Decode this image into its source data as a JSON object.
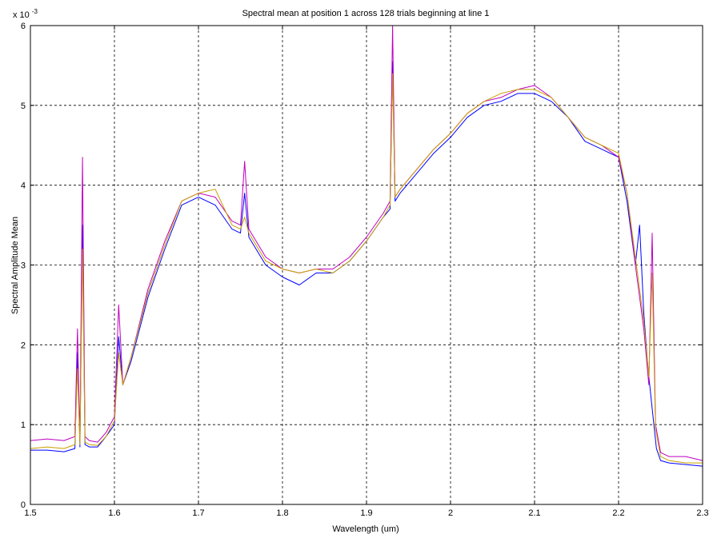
{
  "chart_data": {
    "type": "line",
    "title": "Spectral mean at position 1 across 128 trials beginning at line 1",
    "xlabel": "Wavelength (um)",
    "ylabel": "Spectral Amplitude Mean",
    "y_exponent_label": "x 10",
    "y_exponent_power": "-3",
    "xlim": [
      1.5,
      2.3
    ],
    "ylim": [
      0,
      6
    ],
    "x_ticks": [
      1.5,
      1.6,
      1.7,
      1.8,
      1.9,
      2.0,
      2.1,
      2.2,
      2.3
    ],
    "x_tick_labels": [
      "1.5",
      "1.6",
      "1.7",
      "1.8",
      "1.9",
      "2",
      "2.1",
      "2.2",
      "2.3"
    ],
    "y_ticks": [
      0,
      1,
      2,
      3,
      4,
      5,
      6
    ],
    "y_tick_labels": [
      "0",
      "1",
      "2",
      "3",
      "4",
      "5",
      "6"
    ],
    "grid": true,
    "legend": "none",
    "series": [
      {
        "color": "#0000ff",
        "x": [
          1.5,
          1.52,
          1.54,
          1.553,
          1.556,
          1.559,
          1.562,
          1.565,
          1.57,
          1.58,
          1.59,
          1.6,
          1.605,
          1.61,
          1.62,
          1.64,
          1.66,
          1.68,
          1.7,
          1.72,
          1.74,
          1.75,
          1.755,
          1.76,
          1.78,
          1.8,
          1.82,
          1.84,
          1.86,
          1.88,
          1.9,
          1.92,
          1.928,
          1.931,
          1.934,
          1.94,
          1.96,
          1.98,
          2.0,
          2.02,
          2.04,
          2.06,
          2.08,
          2.1,
          2.12,
          2.14,
          2.16,
          2.18,
          2.2,
          2.21,
          2.22,
          2.225,
          2.23,
          2.235,
          2.24,
          2.245,
          2.25,
          2.26,
          2.28,
          2.3
        ],
        "y": [
          0.68,
          0.68,
          0.66,
          0.7,
          1.9,
          0.72,
          3.5,
          0.75,
          0.72,
          0.72,
          0.85,
          1.0,
          2.1,
          1.5,
          1.8,
          2.6,
          3.2,
          3.75,
          3.85,
          3.75,
          3.45,
          3.4,
          3.9,
          3.35,
          3.0,
          2.85,
          2.75,
          2.9,
          2.9,
          3.05,
          3.3,
          3.6,
          3.7,
          5.55,
          3.8,
          3.9,
          4.15,
          4.4,
          4.6,
          4.85,
          5.0,
          5.05,
          5.15,
          5.15,
          5.05,
          4.85,
          4.55,
          4.45,
          4.35,
          3.8,
          3.0,
          3.5,
          2.4,
          1.7,
          1.2,
          0.7,
          0.55,
          0.52,
          0.5,
          0.48
        ]
      },
      {
        "color": "#c000c0",
        "x": [
          1.5,
          1.52,
          1.54,
          1.553,
          1.556,
          1.559,
          1.562,
          1.565,
          1.57,
          1.58,
          1.59,
          1.6,
          1.605,
          1.61,
          1.62,
          1.64,
          1.66,
          1.68,
          1.7,
          1.72,
          1.74,
          1.75,
          1.755,
          1.76,
          1.78,
          1.8,
          1.82,
          1.84,
          1.86,
          1.88,
          1.9,
          1.92,
          1.928,
          1.931,
          1.934,
          1.94,
          1.96,
          1.98,
          2.0,
          2.02,
          2.04,
          2.06,
          2.08,
          2.1,
          2.12,
          2.14,
          2.16,
          2.18,
          2.2,
          2.21,
          2.22,
          2.23,
          2.236,
          2.24,
          2.244,
          2.25,
          2.26,
          2.28,
          2.3
        ],
        "y": [
          0.8,
          0.82,
          0.8,
          0.85,
          2.2,
          0.8,
          4.35,
          0.85,
          0.8,
          0.78,
          0.9,
          1.1,
          2.5,
          1.5,
          1.85,
          2.7,
          3.3,
          3.8,
          3.9,
          3.85,
          3.55,
          3.5,
          4.3,
          3.45,
          3.1,
          2.95,
          2.9,
          2.95,
          2.95,
          3.1,
          3.35,
          3.65,
          3.8,
          6.0,
          3.85,
          3.95,
          4.2,
          4.45,
          4.65,
          4.9,
          5.05,
          5.1,
          5.2,
          5.25,
          5.1,
          4.85,
          4.6,
          4.5,
          4.35,
          3.9,
          3.0,
          2.2,
          1.5,
          3.4,
          1.0,
          0.65,
          0.6,
          0.6,
          0.55
        ]
      },
      {
        "color": "#c8a000",
        "x": [
          1.5,
          1.52,
          1.54,
          1.553,
          1.556,
          1.559,
          1.562,
          1.565,
          1.57,
          1.58,
          1.59,
          1.6,
          1.605,
          1.61,
          1.62,
          1.64,
          1.66,
          1.68,
          1.7,
          1.72,
          1.74,
          1.75,
          1.755,
          1.76,
          1.78,
          1.8,
          1.82,
          1.84,
          1.86,
          1.88,
          1.9,
          1.92,
          1.928,
          1.931,
          1.934,
          1.94,
          1.96,
          1.98,
          2.0,
          2.02,
          2.04,
          2.06,
          2.08,
          2.1,
          2.12,
          2.14,
          2.16,
          2.18,
          2.2,
          2.21,
          2.22,
          2.23,
          2.236,
          2.24,
          2.244,
          2.25,
          2.26,
          2.28,
          2.3
        ],
        "y": [
          0.7,
          0.72,
          0.7,
          0.75,
          1.7,
          0.75,
          3.2,
          0.78,
          0.75,
          0.74,
          0.85,
          1.05,
          1.9,
          1.5,
          1.85,
          2.65,
          3.25,
          3.8,
          3.9,
          3.95,
          3.5,
          3.45,
          3.6,
          3.4,
          3.05,
          2.95,
          2.9,
          2.95,
          2.9,
          3.05,
          3.3,
          3.6,
          3.75,
          5.4,
          3.85,
          3.95,
          4.2,
          4.45,
          4.65,
          4.9,
          5.05,
          5.15,
          5.2,
          5.2,
          5.1,
          4.85,
          4.6,
          4.5,
          4.4,
          3.9,
          3.1,
          2.3,
          1.6,
          2.9,
          0.95,
          0.6,
          0.55,
          0.52,
          0.52
        ]
      }
    ]
  }
}
